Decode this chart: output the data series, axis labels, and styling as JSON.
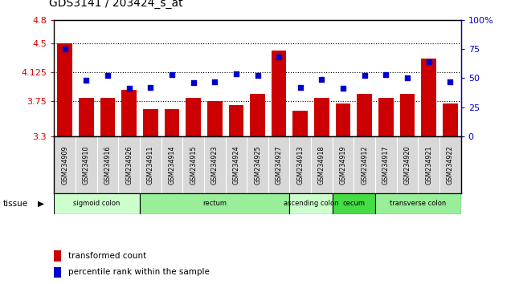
{
  "title": "GDS3141 / 203424_s_at",
  "samples": [
    "GSM234909",
    "GSM234910",
    "GSM234916",
    "GSM234926",
    "GSM234911",
    "GSM234914",
    "GSM234915",
    "GSM234923",
    "GSM234924",
    "GSM234925",
    "GSM234927",
    "GSM234913",
    "GSM234918",
    "GSM234919",
    "GSM234912",
    "GSM234917",
    "GSM234920",
    "GSM234921",
    "GSM234922"
  ],
  "bar_values": [
    4.5,
    3.8,
    3.8,
    3.9,
    3.65,
    3.65,
    3.8,
    3.75,
    3.7,
    3.85,
    4.4,
    3.63,
    3.8,
    3.72,
    3.85,
    3.8,
    3.85,
    4.3,
    3.72
  ],
  "dot_values": [
    75,
    48,
    52,
    41,
    42,
    53,
    46,
    47,
    54,
    52,
    68,
    42,
    49,
    41,
    52,
    53,
    50,
    64,
    47
  ],
  "ylim": [
    3.3,
    4.8
  ],
  "y2lim": [
    0,
    100
  ],
  "yticks": [
    3.3,
    3.75,
    4.125,
    4.5,
    4.8
  ],
  "ytick_labels": [
    "3.3",
    "3.75",
    "4.125",
    "4.5",
    "4.8"
  ],
  "y2ticks": [
    0,
    25,
    50,
    75,
    100
  ],
  "y2tick_labels": [
    "0",
    "25",
    "50",
    "75",
    "100%"
  ],
  "hlines": [
    3.75,
    4.125,
    4.5
  ],
  "bar_color": "#cc0000",
  "dot_color": "#0000cc",
  "tissue_groups": [
    {
      "label": "sigmoid colon",
      "start": 0,
      "end": 4,
      "color": "#ccffcc"
    },
    {
      "label": "rectum",
      "start": 4,
      "end": 11,
      "color": "#99ee99"
    },
    {
      "label": "ascending colon",
      "start": 11,
      "end": 13,
      "color": "#ccffcc"
    },
    {
      "label": "cecum",
      "start": 13,
      "end": 15,
      "color": "#44dd44"
    },
    {
      "label": "transverse colon",
      "start": 15,
      "end": 19,
      "color": "#99ee99"
    }
  ],
  "legend_bar_label": "transformed count",
  "legend_dot_label": "percentile rank within the sample",
  "tissue_label": "tissue",
  "background_color": "#ffffff",
  "tick_bg_color": "#d8d8d8"
}
